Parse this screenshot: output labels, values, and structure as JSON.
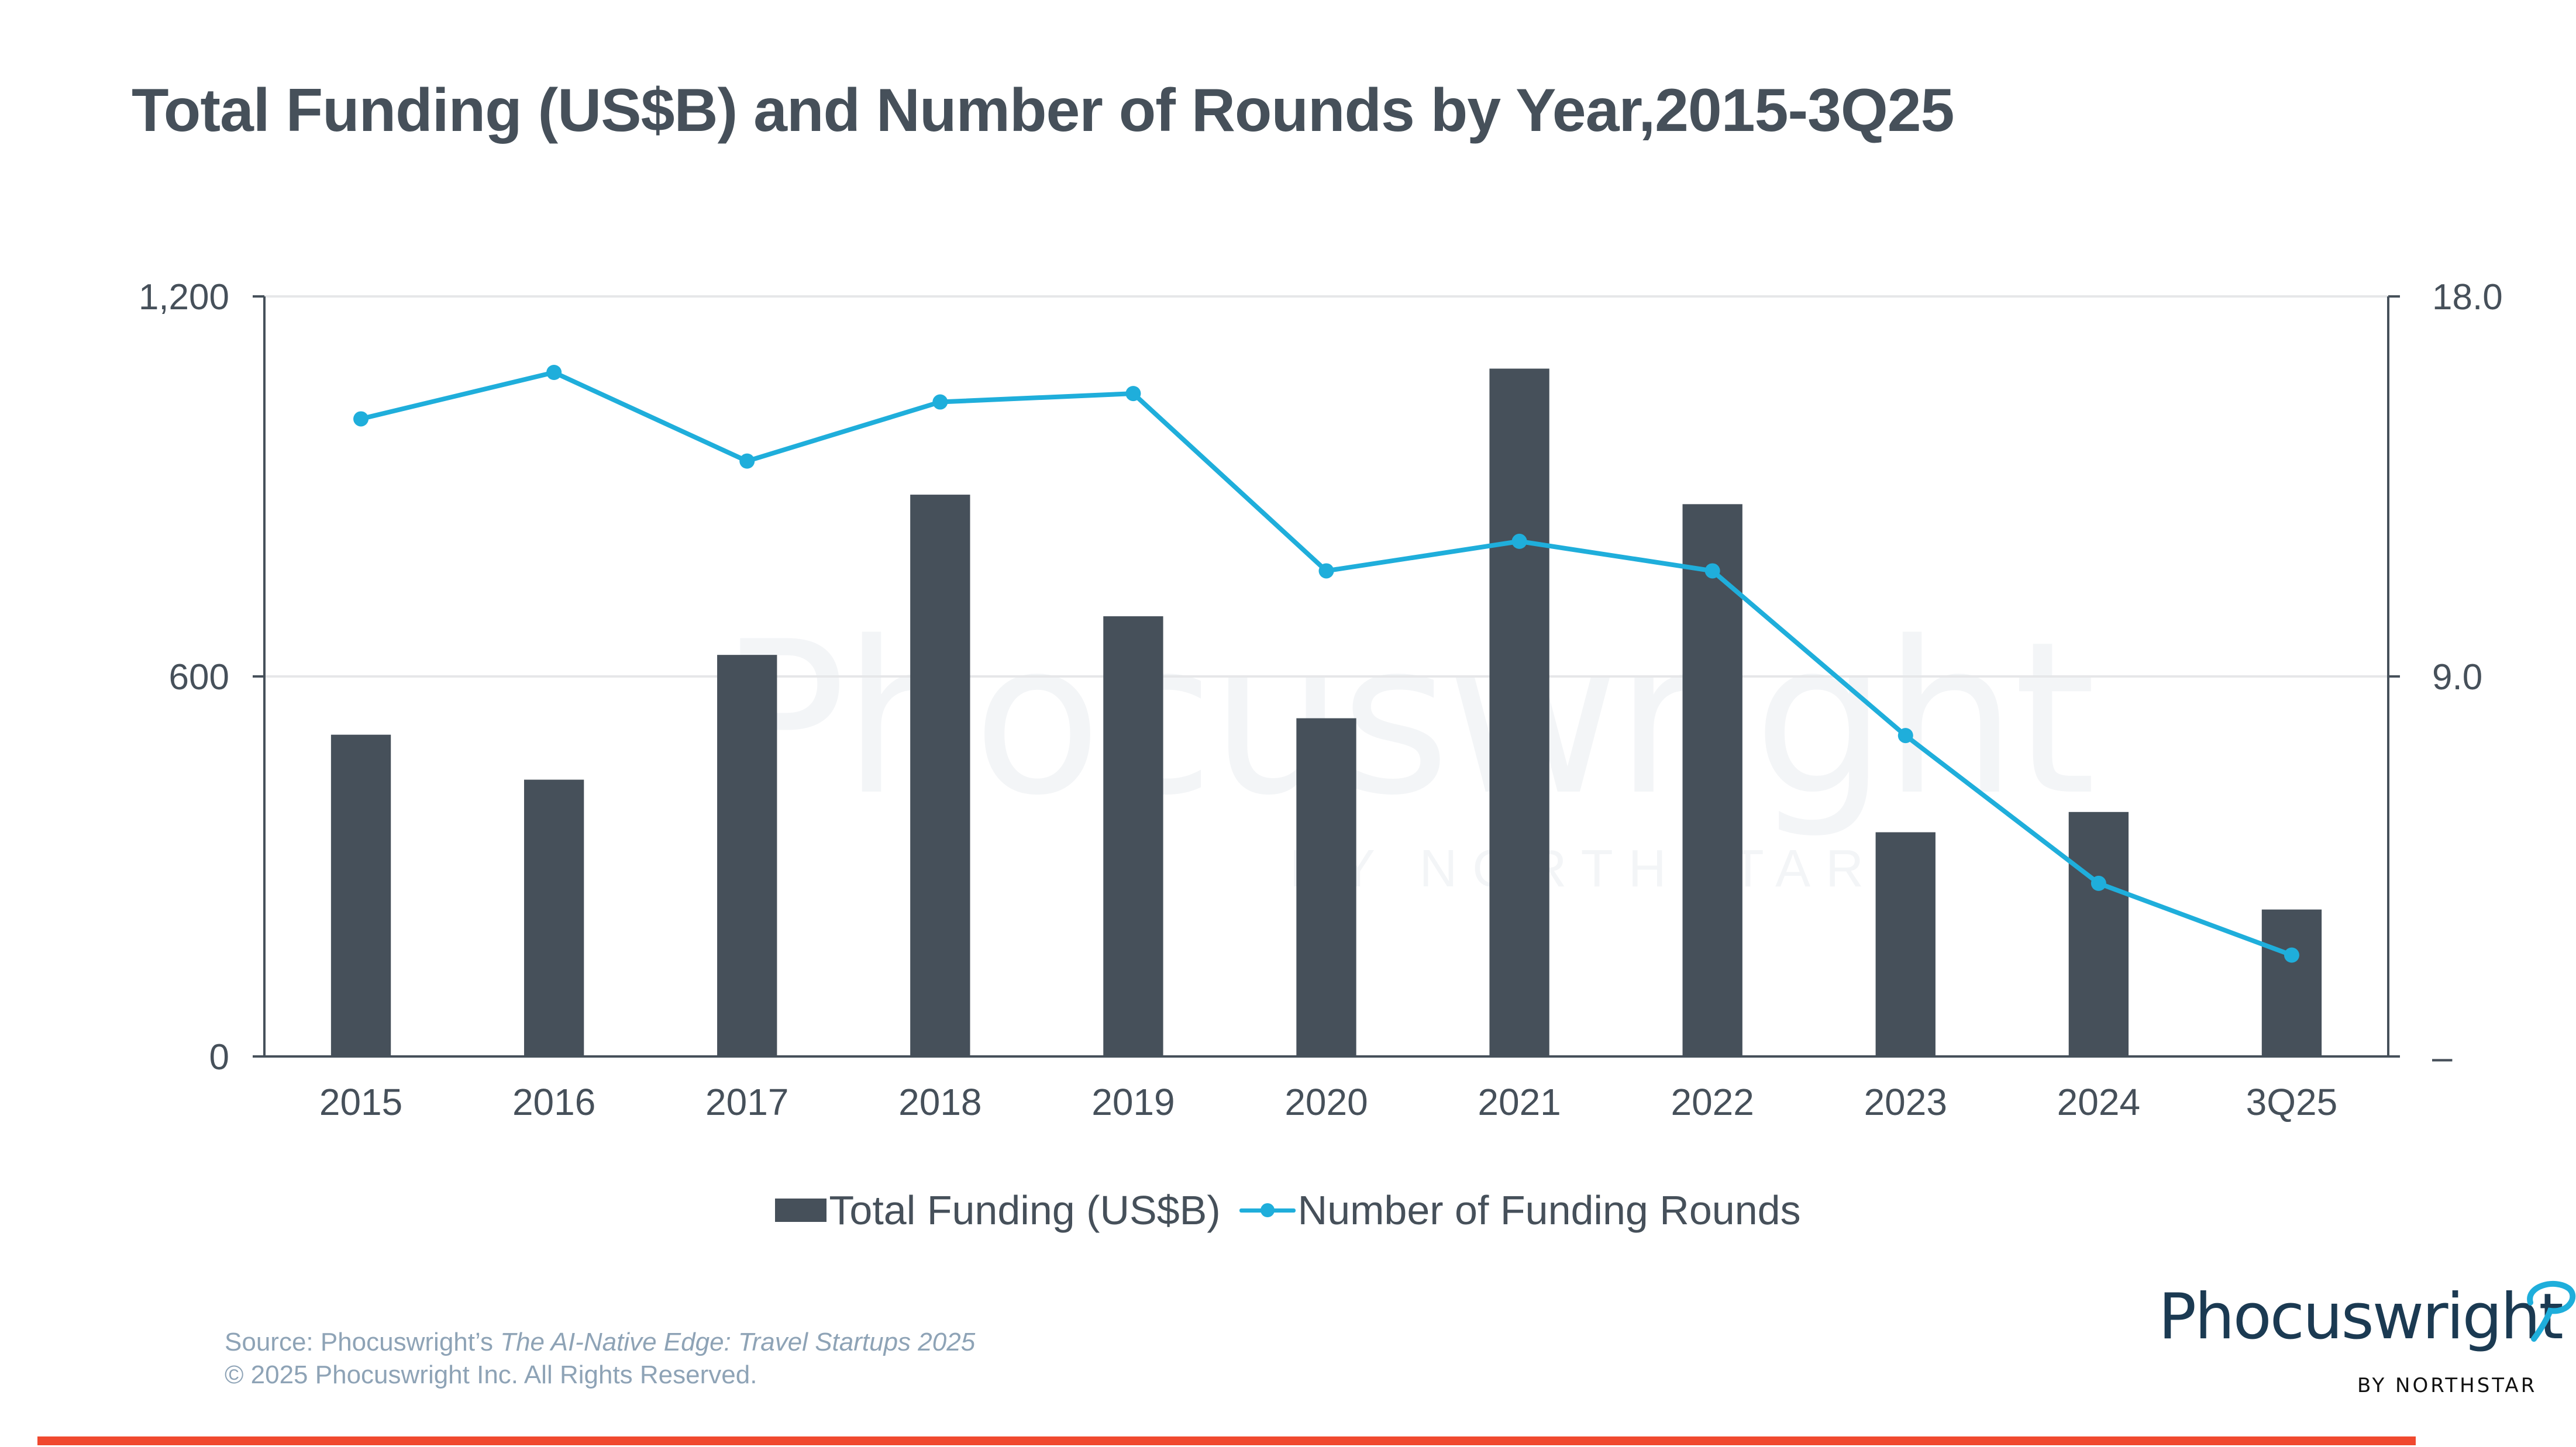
{
  "title": "Total Funding (US$B) and Number of Rounds by Year,2015-3Q25",
  "colors": {
    "bar": "#46505A",
    "line": "#1FAEDB",
    "gridline": "#E6E7E9",
    "axis": "#46505A",
    "accent_red": "#F0492F",
    "logo_text": "#1B3A52",
    "logo_swoosh": "#1FAEDB",
    "footer_text": "#8EA3B6"
  },
  "chart_data": {
    "type": "bar",
    "title": "Total Funding (US$B) and Number of Rounds by Year,2015-3Q25",
    "xlabel": "",
    "ylabel": "",
    "categories": [
      "2015",
      "2016",
      "2017",
      "2018",
      "2019",
      "2020",
      "2021",
      "2022",
      "2023",
      "2024",
      "3Q25"
    ],
    "series": [
      {
        "name": "Total Funding (US$B)",
        "type": "bar",
        "axis": "left",
        "values": [
          508,
          437,
          634,
          887,
          695,
          534,
          1086,
          872,
          354,
          386,
          232
        ]
      },
      {
        "name": "Number of Funding Rounds",
        "type": "line",
        "axis": "right",
        "marker": "circle",
        "values": [
          15.1,
          16.2,
          14.1,
          15.5,
          15.7,
          11.5,
          12.2,
          11.5,
          7.6,
          4.1,
          2.4
        ]
      }
    ],
    "ylim": [
      0,
      1200
    ],
    "y_ticks": [
      0,
      600,
      1200
    ],
    "y_tick_labels": [
      "0",
      "600",
      "1,200"
    ],
    "y2lim": [
      0,
      18
    ],
    "y2_ticks": [
      0,
      9,
      18
    ],
    "y2_tick_labels": [
      "–",
      "9.0",
      "18.0"
    ],
    "grid": true,
    "legend": {
      "position": "bottom",
      "entries": [
        "Total Funding (US$B)",
        "Number of Funding Rounds"
      ]
    }
  },
  "watermark": {
    "word": "Phocuswright",
    "sub": "BY NORTHSTAR"
  },
  "footer": {
    "source_prefix": "Source: Phocuswright’s ",
    "source_title": "The AI-Native Edge: Travel Startups 2025",
    "copyright": "© 2025 Phocuswright Inc. All Rights Reserved."
  },
  "logo": {
    "word": "Phocuswright",
    "sub": "BY NORTHSTAR"
  }
}
